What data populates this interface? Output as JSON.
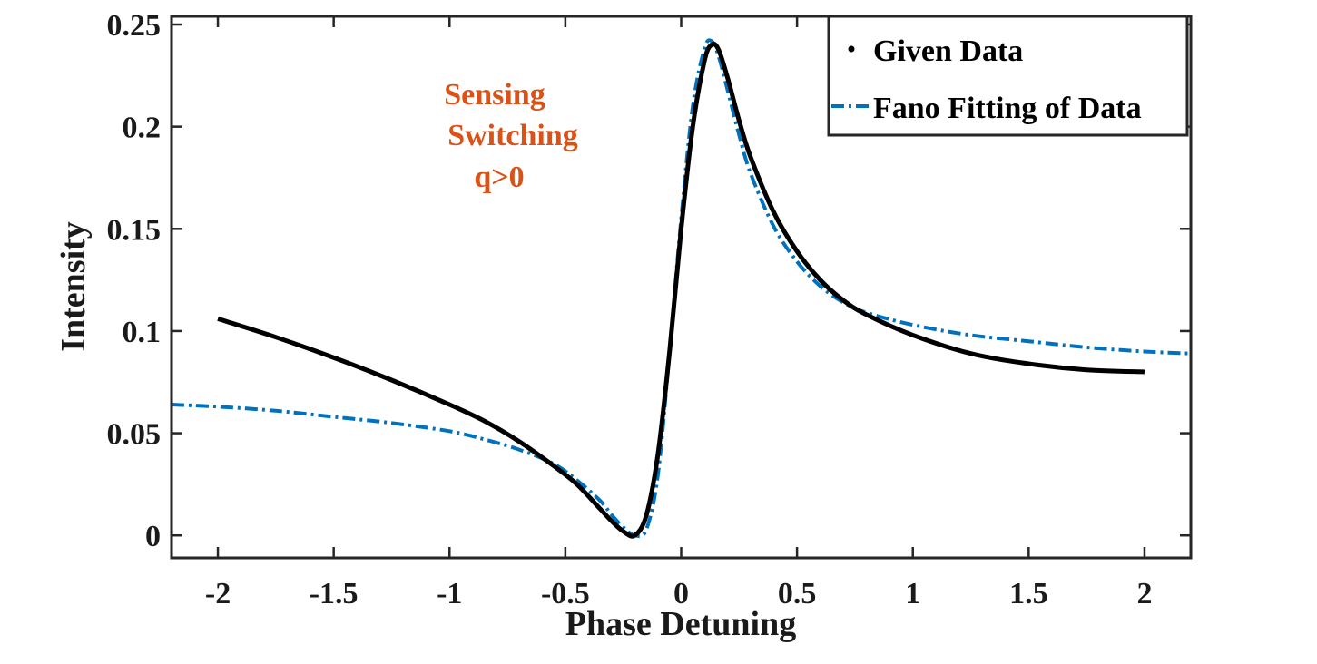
{
  "chart_data": {
    "type": "line",
    "xlabel": "Phase Detuning",
    "ylabel": "Intensity",
    "xlim": [
      -2.2,
      2.2
    ],
    "ylim": [
      -0.011,
      0.254
    ],
    "xticks": [
      -2,
      -1.5,
      -1,
      -0.5,
      0,
      0.5,
      1,
      1.5,
      2
    ],
    "xtick_labels": [
      "-2",
      "-1.5",
      "-1",
      "-0.5",
      "0",
      "0.5",
      "1",
      "1.5",
      "2"
    ],
    "yticks": [
      0,
      0.05,
      0.1,
      0.15,
      0.2,
      0.25
    ],
    "ytick_labels": [
      "0",
      "0.05",
      "0.1",
      "0.15",
      "0.2",
      "0.25"
    ],
    "grid": false,
    "legend_position": "top-right",
    "annotations": {
      "lines": [
        "Sensing",
        "Switching",
        "q>0"
      ],
      "color": "#d95319"
    },
    "series": [
      {
        "name": "Given Data",
        "style": "solid",
        "color": "#000000",
        "x": [
          -2,
          -1.75,
          -1.5,
          -1.25,
          -1,
          -0.85,
          -0.7,
          -0.55,
          -0.45,
          -0.35,
          -0.3,
          -0.25,
          -0.2,
          -0.15,
          -0.1,
          -0.05,
          0,
          0.05,
          0.1,
          0.13,
          0.16,
          0.2,
          0.25,
          0.3,
          0.4,
          0.5,
          0.6,
          0.7,
          0.8,
          1,
          1.25,
          1.5,
          1.75,
          2
        ],
        "y": [
          0.106,
          0.097,
          0.087,
          0.076,
          0.064,
          0.056,
          0.046,
          0.034,
          0.025,
          0.013,
          0.007,
          0.002,
          0.0,
          0.01,
          0.04,
          0.09,
          0.15,
          0.2,
          0.232,
          0.24,
          0.238,
          0.224,
          0.203,
          0.185,
          0.158,
          0.139,
          0.125,
          0.115,
          0.108,
          0.098,
          0.089,
          0.084,
          0.081,
          0.08
        ]
      },
      {
        "name": "Fano Fitting of Data",
        "style": "dash-dot",
        "color": "#0072bd",
        "x": [
          -2.2,
          -2,
          -1.75,
          -1.5,
          -1.25,
          -1,
          -0.85,
          -0.7,
          -0.55,
          -0.45,
          -0.35,
          -0.3,
          -0.25,
          -0.2,
          -0.15,
          -0.1,
          -0.05,
          0,
          0.05,
          0.1,
          0.13,
          0.16,
          0.2,
          0.25,
          0.3,
          0.4,
          0.5,
          0.6,
          0.7,
          0.8,
          1,
          1.25,
          1.5,
          1.75,
          2,
          2.2
        ],
        "y": [
          0.064,
          0.063,
          0.061,
          0.058,
          0.055,
          0.051,
          0.047,
          0.042,
          0.035,
          0.027,
          0.017,
          0.01,
          0.004,
          0.0,
          0.003,
          0.03,
          0.09,
          0.155,
          0.21,
          0.238,
          0.242,
          0.235,
          0.218,
          0.196,
          0.177,
          0.151,
          0.134,
          0.122,
          0.114,
          0.109,
          0.103,
          0.098,
          0.095,
          0.092,
          0.09,
          0.089
        ]
      }
    ]
  }
}
